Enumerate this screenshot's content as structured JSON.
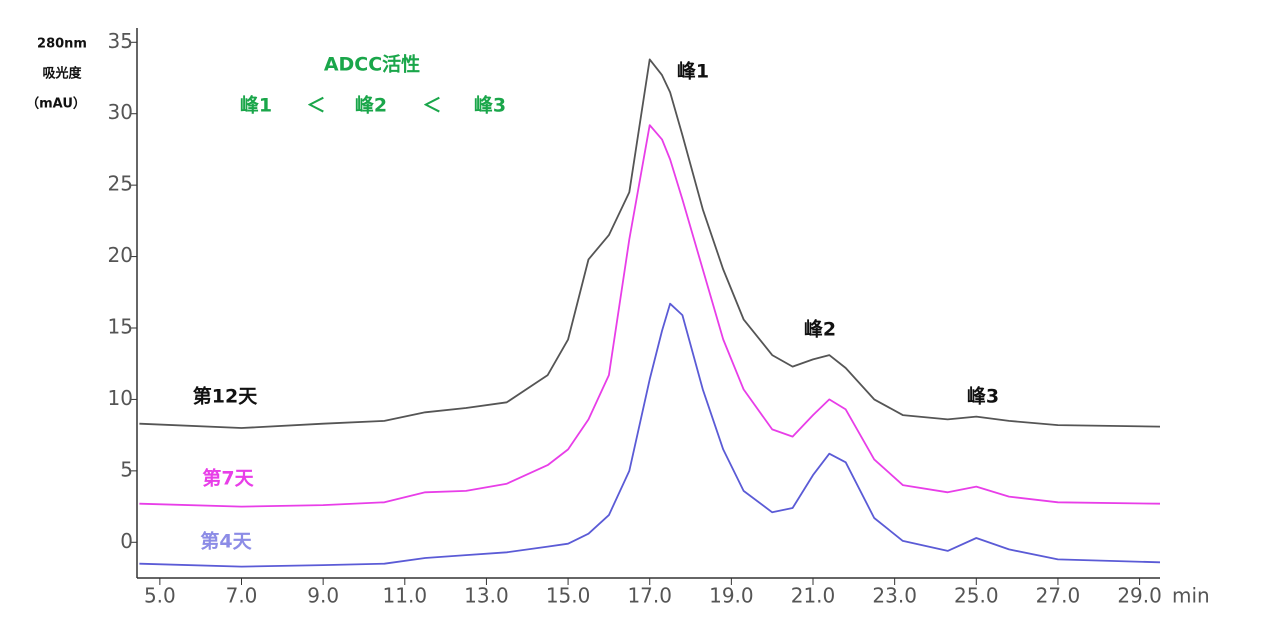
{
  "chart_data": {
    "type": "line",
    "ylabel": [
      "280nm",
      "吸光度",
      "（mAU）"
    ],
    "xlabel": "min",
    "x": [
      4.5,
      7,
      9,
      10.5,
      11.5,
      12.5,
      13.5,
      14.5,
      15,
      15.5,
      16,
      16.5,
      17,
      17.3,
      17.5,
      17.8,
      18.3,
      18.8,
      19.3,
      20,
      20.5,
      21,
      21.4,
      21.8,
      22.5,
      23.2,
      24.3,
      25,
      25.8,
      27,
      29.5
    ],
    "series": [
      {
        "name": "第12天",
        "color": "#555555",
        "label_color": "#111111",
        "values": [
          8.3,
          8.0,
          8.3,
          8.5,
          9.1,
          9.4,
          9.8,
          11.7,
          14.2,
          19.8,
          21.5,
          24.5,
          33.8,
          32.7,
          31.5,
          28.5,
          23.3,
          19.1,
          15.6,
          13.1,
          12.3,
          12.8,
          13.1,
          12.2,
          10.0,
          8.9,
          8.6,
          8.8,
          8.5,
          8.2,
          8.1
        ]
      },
      {
        "name": "第7天",
        "color": "#e83ee8",
        "label_color": "#e83ee8",
        "values": [
          2.7,
          2.5,
          2.6,
          2.8,
          3.5,
          3.6,
          4.1,
          5.4,
          6.5,
          8.6,
          11.7,
          21.2,
          29.2,
          28.2,
          26.8,
          24.0,
          19.1,
          14.2,
          10.7,
          7.9,
          7.4,
          8.9,
          10.0,
          9.3,
          5.8,
          4.0,
          3.5,
          3.9,
          3.2,
          2.8,
          2.7
        ]
      },
      {
        "name": "第4天",
        "color": "#5b5bd6",
        "label_color": "#8c8ce6",
        "values": [
          -1.5,
          -1.7,
          -1.6,
          -1.5,
          -1.1,
          -0.9,
          -0.7,
          -0.3,
          -0.1,
          0.6,
          1.9,
          5.0,
          11.4,
          14.8,
          16.7,
          15.9,
          10.7,
          6.5,
          3.6,
          2.1,
          2.4,
          4.7,
          6.2,
          5.6,
          1.7,
          0.1,
          -0.6,
          0.3,
          -0.5,
          -1.2,
          -1.4
        ]
      }
    ],
    "xlim": [
      4.44,
      29.5
    ],
    "ylim": [
      -2.5,
      36
    ],
    "xticks": [
      {
        "value": 5,
        "label": "5.0"
      },
      {
        "value": 7,
        "label": "7.0"
      },
      {
        "value": 9,
        "label": "9.0"
      },
      {
        "value": 11,
        "label": "11.0"
      },
      {
        "value": 13,
        "label": "13.0"
      },
      {
        "value": 15,
        "label": "15.0"
      },
      {
        "value": 17,
        "label": "17.0"
      },
      {
        "value": 19,
        "label": "19.0"
      },
      {
        "value": 21,
        "label": "21.0"
      },
      {
        "value": 23,
        "label": "23.0"
      },
      {
        "value": 25,
        "label": "25.0"
      },
      {
        "value": 27,
        "label": "27.0"
      },
      {
        "value": 29,
        "label": "29.0"
      }
    ],
    "yticks": [
      0,
      5,
      10,
      15,
      20,
      25,
      30,
      35
    ],
    "annotations": {
      "title": "ADCC活性",
      "order": [
        "峰1",
        "＜",
        "峰2",
        "＜",
        "峰3"
      ],
      "color": "#1aa64a",
      "peaks": [
        "峰1",
        "峰2",
        "峰3"
      ]
    }
  }
}
